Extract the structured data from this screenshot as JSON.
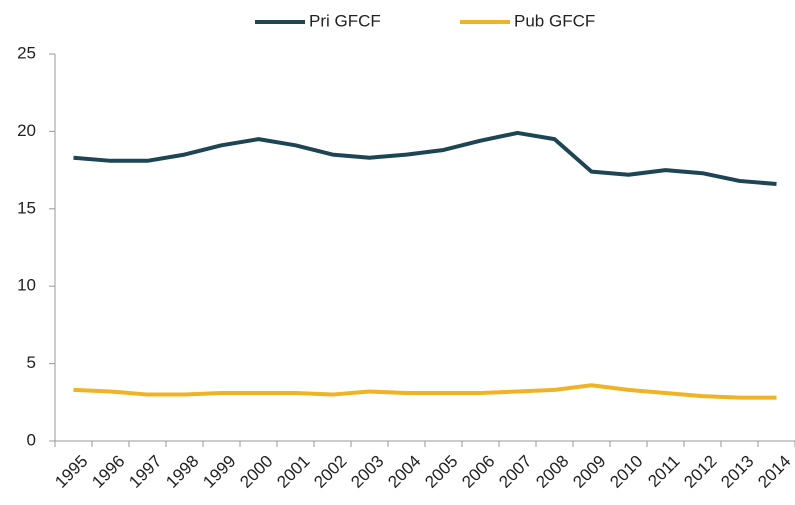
{
  "chart_data": {
    "type": "line",
    "categories": [
      "1995",
      "1996",
      "1997",
      "1998",
      "1999",
      "2000",
      "2001",
      "2002",
      "2003",
      "2004",
      "2005",
      "2006",
      "2007",
      "2008",
      "2009",
      "2010",
      "2011",
      "2012",
      "2013",
      "2014"
    ],
    "series": [
      {
        "name": "Pri GFCF",
        "color": "#1d4553",
        "values": [
          18.3,
          18.1,
          18.1,
          18.5,
          19.1,
          19.5,
          19.1,
          18.5,
          18.3,
          18.5,
          18.8,
          19.4,
          19.9,
          19.5,
          17.4,
          17.2,
          17.5,
          17.3,
          16.8,
          16.6
        ]
      },
      {
        "name": "Pub GFCF",
        "color": "#f0b323",
        "values": [
          3.3,
          3.2,
          3.0,
          3.0,
          3.1,
          3.1,
          3.1,
          3.0,
          3.2,
          3.1,
          3.1,
          3.1,
          3.2,
          3.3,
          3.6,
          3.3,
          3.1,
          2.9,
          2.8,
          2.8
        ]
      }
    ],
    "ylim": [
      0,
      25
    ],
    "yticks": [
      0,
      5,
      10,
      15,
      20,
      25
    ],
    "grid": false,
    "legend": "top"
  }
}
